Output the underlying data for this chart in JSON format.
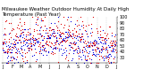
{
  "title": "Milwaukee Weather Outdoor Humidity At Daily High Temperature (Past Year)",
  "ylim": [
    20,
    100
  ],
  "yticks": [
    30,
    40,
    50,
    60,
    70,
    80,
    90,
    100
  ],
  "background_color": "#ffffff",
  "grid_color": "#bbbbbb",
  "blue_color": "#0000dd",
  "red_color": "#dd0000",
  "n_points": 365,
  "seed": 42,
  "blue_mean": 52,
  "blue_std": 16,
  "red_mean": 60,
  "red_std": 18,
  "title_fontsize": 4.0,
  "tick_fontsize": 3.5,
  "dot_size": 0.8,
  "n_month_gridlines": 13,
  "month_offsets": [
    0,
    31,
    59,
    90,
    120,
    151,
    181,
    212,
    243,
    273,
    304,
    334,
    365
  ]
}
